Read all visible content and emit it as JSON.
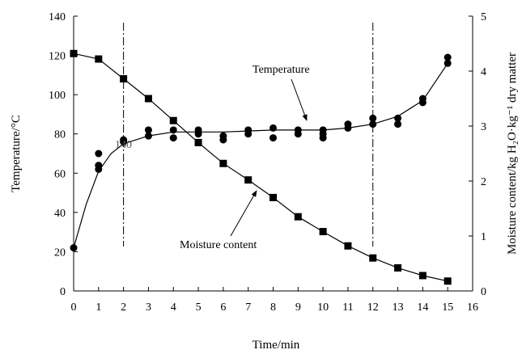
{
  "chart_data": {
    "type": "scatter",
    "xlabel": "Time/min",
    "ylabel_left": "Temperature/°C",
    "ylabel_right": "Moisture content/kg H₂O·kg⁻¹ dry matter",
    "x_ticks": [
      "0",
      "1",
      "2",
      "3",
      "4",
      "5",
      "6",
      "7",
      "8",
      "9",
      "10",
      "11",
      "12",
      "13",
      "14",
      "15",
      "16"
    ],
    "y_left_ticks": [
      "0",
      "20",
      "40",
      "60",
      "80",
      "100",
      "120",
      "140"
    ],
    "y_right_ticks": [
      "0",
      "1",
      "2",
      "3",
      "4",
      "5"
    ],
    "xlim": [
      0,
      16
    ],
    "ylim_left": [
      0,
      140
    ],
    "ylim_right": [
      0,
      5
    ],
    "grid": false,
    "annotations": {
      "temperature_label": "Temperature",
      "moisture_label": "Moisture content",
      "mid_label": "140"
    },
    "vlines_x": [
      2,
      12
    ],
    "series": [
      {
        "name": "Temperature",
        "axis": "left",
        "marker": "circle",
        "points": [
          [
            0,
            22
          ],
          [
            1,
            70
          ],
          [
            1,
            64
          ],
          [
            1,
            62
          ],
          [
            2,
            77
          ],
          [
            2,
            76
          ],
          [
            3,
            82
          ],
          [
            3,
            79
          ],
          [
            4,
            82
          ],
          [
            4,
            78
          ],
          [
            5,
            82
          ],
          [
            5,
            80
          ],
          [
            6,
            79
          ],
          [
            6,
            77
          ],
          [
            7,
            82
          ],
          [
            7,
            80
          ],
          [
            8,
            83
          ],
          [
            8,
            78
          ],
          [
            9,
            82
          ],
          [
            9,
            80
          ],
          [
            10,
            82
          ],
          [
            10,
            80
          ],
          [
            10,
            78
          ],
          [
            11,
            85
          ],
          [
            11,
            83
          ],
          [
            12,
            88
          ],
          [
            12,
            85
          ],
          [
            13,
            88
          ],
          [
            13,
            85
          ],
          [
            14,
            98
          ],
          [
            14,
            96
          ],
          [
            15,
            119
          ],
          [
            15,
            116
          ]
        ],
        "curve": [
          [
            0,
            22
          ],
          [
            0.5,
            44
          ],
          [
            1,
            61
          ],
          [
            1.5,
            70
          ],
          [
            2,
            75
          ],
          [
            3,
            79
          ],
          [
            4,
            81
          ],
          [
            5,
            81
          ],
          [
            6,
            81
          ],
          [
            7,
            81.5
          ],
          [
            8,
            82
          ],
          [
            9,
            82
          ],
          [
            10,
            82
          ],
          [
            11,
            83
          ],
          [
            12,
            85
          ],
          [
            13,
            89
          ],
          [
            14,
            97
          ],
          [
            15,
            116
          ]
        ]
      },
      {
        "name": "Moisture content",
        "axis": "right",
        "marker": "square",
        "points": [
          [
            0,
            4.32
          ],
          [
            1,
            4.22
          ],
          [
            2,
            3.86
          ],
          [
            3,
            3.5
          ],
          [
            4,
            3.1
          ],
          [
            5,
            2.7
          ],
          [
            6,
            2.32
          ],
          [
            7,
            2.02
          ],
          [
            8,
            1.7
          ],
          [
            9,
            1.35
          ],
          [
            10,
            1.08
          ],
          [
            11,
            0.82
          ],
          [
            12,
            0.6
          ],
          [
            13,
            0.42
          ],
          [
            14,
            0.28
          ],
          [
            15,
            0.18
          ]
        ]
      }
    ]
  }
}
